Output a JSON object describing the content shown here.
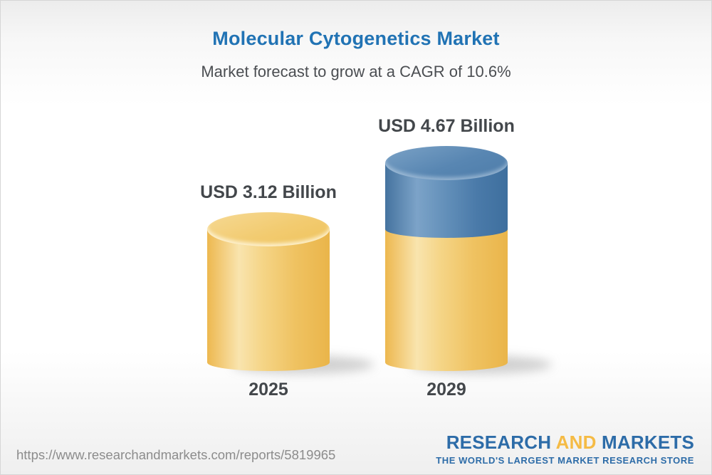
{
  "chart_data": {
    "type": "bar",
    "subtype": "3d-cylinder-infographic",
    "title": "Molecular Cytogenetics Market",
    "subtitle": "Market forecast to grow at a CAGR of 10.6%",
    "cagr": "10.6%",
    "unit": "USD Billion",
    "categories": [
      "2025",
      "2029"
    ],
    "values": [
      3.12,
      4.67
    ],
    "value_labels": [
      "USD 3.12 Billion",
      "USD 4.67 Billion"
    ],
    "legend": "none",
    "axes": "none",
    "bars": [
      {
        "category": "2025",
        "value": 3.12,
        "value_label": "USD 3.12 Billion",
        "segments": [
          {
            "value": 3.12,
            "color_key": "gold"
          }
        ]
      },
      {
        "category": "2029",
        "value": 4.67,
        "value_label": "USD 4.67 Billion",
        "segments": [
          {
            "value": 3.12,
            "color_key": "gold"
          },
          {
            "value": 1.55,
            "color_key": "blue"
          }
        ]
      }
    ],
    "colors": {
      "gold": "#f0c364",
      "blue": "#5585b2",
      "title_blue": "#2173b4",
      "label_dark": "#43474b"
    }
  },
  "footer": {
    "url": "https://www.researchandmarkets.com/reports/5819965",
    "logo": {
      "word1": "RESEARCH",
      "word2": "AND",
      "word3": "MARKETS",
      "tagline": "THE WORLD'S LARGEST MARKET RESEARCH STORE",
      "blue": "#2d6ca8",
      "gold": "#f5bb45"
    }
  }
}
